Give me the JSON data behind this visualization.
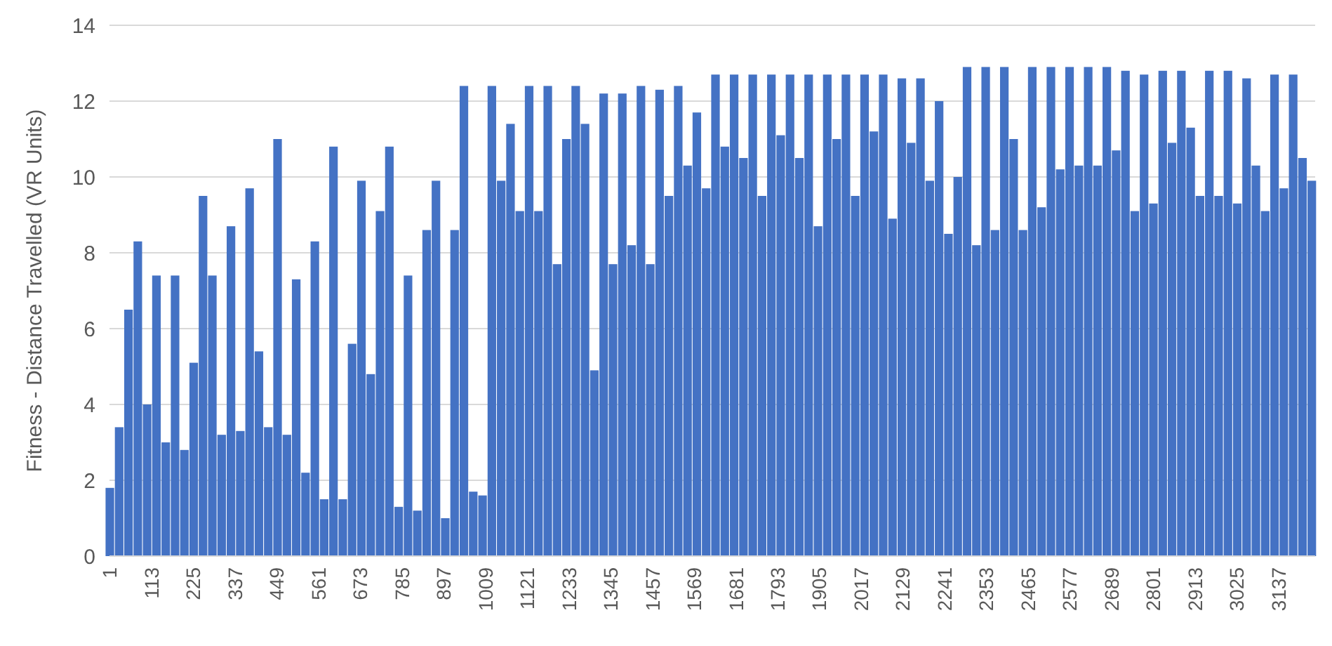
{
  "chart_data": {
    "type": "bar",
    "ylabel": "Fitness - Distance Travelled (VR Units)",
    "color": "#4472c4",
    "x": [
      1,
      26,
      51,
      76,
      101,
      126,
      151,
      176,
      201,
      226,
      251,
      276,
      301,
      326,
      351,
      376,
      401,
      426,
      451,
      476,
      501,
      526,
      551,
      576,
      601,
      626,
      651,
      676,
      701,
      726,
      751,
      776,
      801,
      826,
      851,
      876,
      901,
      926,
      951,
      976,
      1001,
      1026,
      1051,
      1076,
      1101,
      1126,
      1151,
      1176,
      1201,
      1226,
      1251,
      1276,
      1301,
      1326,
      1351,
      1376,
      1401,
      1426,
      1451,
      1476,
      1501,
      1526,
      1551,
      1576,
      1601,
      1626,
      1651,
      1676,
      1701,
      1726,
      1751,
      1776,
      1801,
      1826,
      1851,
      1876,
      1901,
      1926,
      1951,
      1976,
      2001,
      2026,
      2051,
      2076,
      2101,
      2126,
      2151,
      2176,
      2201,
      2226,
      2251,
      2276,
      2301,
      2326,
      2351,
      2376,
      2401,
      2426,
      2451,
      2476,
      2501,
      2526,
      2551,
      2576,
      2601,
      2626,
      2651,
      2676,
      2701,
      2726,
      2751,
      2776,
      2801,
      2826,
      2851,
      2876,
      2901,
      2926,
      2951,
      2976,
      3001,
      3026,
      3051,
      3076,
      3101,
      3126,
      3151,
      3176,
      3201,
      3226
    ],
    "values": [
      1.8,
      3.4,
      6.5,
      8.3,
      4.0,
      7.4,
      3.0,
      7.4,
      2.8,
      5.1,
      9.5,
      7.4,
      3.2,
      8.7,
      3.3,
      9.7,
      5.4,
      3.4,
      11.0,
      3.2,
      7.3,
      2.2,
      8.3,
      1.5,
      10.8,
      1.5,
      5.6,
      9.9,
      4.8,
      9.1,
      10.8,
      1.3,
      7.4,
      1.2,
      8.6,
      9.9,
      1.0,
      8.6,
      12.4,
      1.7,
      1.6,
      12.4,
      9.9,
      11.4,
      9.1,
      12.4,
      9.1,
      12.4,
      7.7,
      11.0,
      12.4,
      11.4,
      4.9,
      12.2,
      7.7,
      12.2,
      8.2,
      12.4,
      7.7,
      12.3,
      9.5,
      12.4,
      10.3,
      11.7,
      9.7,
      12.7,
      10.8,
      12.7,
      10.5,
      12.7,
      9.5,
      12.7,
      11.1,
      12.7,
      10.5,
      12.7,
      8.7,
      12.7,
      11.0,
      12.7,
      9.5,
      12.7,
      11.2,
      12.7,
      8.9,
      12.6,
      10.9,
      12.6,
      9.9,
      12.0,
      8.5,
      10.0,
      12.9,
      8.2,
      12.9,
      8.6,
      12.9,
      11.0,
      8.6,
      12.9,
      9.2,
      12.9,
      10.2,
      12.9,
      10.3,
      12.9,
      10.3,
      12.9,
      10.7,
      12.8,
      9.1,
      12.7,
      9.3,
      12.8,
      10.9,
      12.8,
      11.3,
      9.5,
      12.8,
      9.5,
      12.8,
      9.3,
      12.6,
      10.3,
      9.1,
      12.7,
      9.7,
      12.7,
      10.5,
      9.9
    ],
    "xlim": [
      0,
      3235
    ],
    "xticks": [
      1,
      113,
      225,
      337,
      449,
      561,
      673,
      785,
      897,
      1009,
      1121,
      1233,
      1345,
      1457,
      1569,
      1681,
      1793,
      1905,
      2017,
      2129,
      2241,
      2353,
      2465,
      2577,
      2689,
      2801,
      2913,
      3025,
      3137
    ],
    "ylim": [
      0,
      14
    ],
    "yticks": [
      0,
      2,
      4,
      6,
      8,
      10,
      12,
      14
    ],
    "grid": "y"
  }
}
